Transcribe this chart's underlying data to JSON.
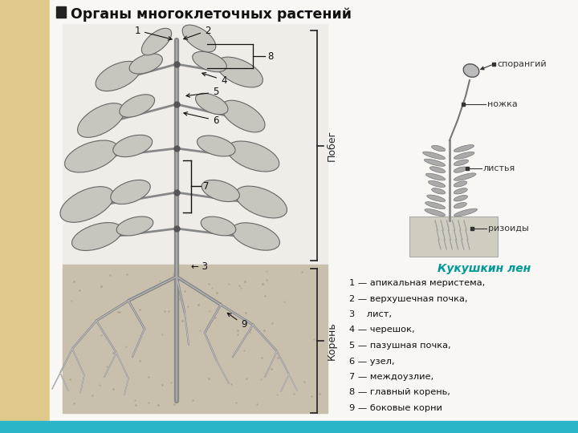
{
  "title": "Органы многоклеточных растений",
  "bg_color": "#f5f5f5",
  "left_panel_color": "#dfc98a",
  "bottom_bar_color": "#2bb5c8",
  "legend_items": [
    "1 — апикальная меристема,",
    "2 — верхушечная почка,",
    "3    лист,",
    "4 — черешок,",
    "5 — пазушная почка,",
    "6 — узел,",
    "7 — междоузлие,",
    "8 — главный корень,",
    "9 — боковые корни"
  ],
  "moss_caption": "Кукушкин лен",
  "shoot_label": "Побег",
  "root_label": "Корень",
  "soil_color_above": "#e8e4de",
  "soil_color_below": "#c5baa8",
  "stem_color": "#888888",
  "leaf_color": "#b0b0b0",
  "leaf_edge_color": "#555555",
  "ann_color": "#111111",
  "bracket_color": "#222222",
  "moss_soil_color": "#c8c0b0",
  "moss_stem_color": "#888888",
  "cyan_label_color": "#009999"
}
